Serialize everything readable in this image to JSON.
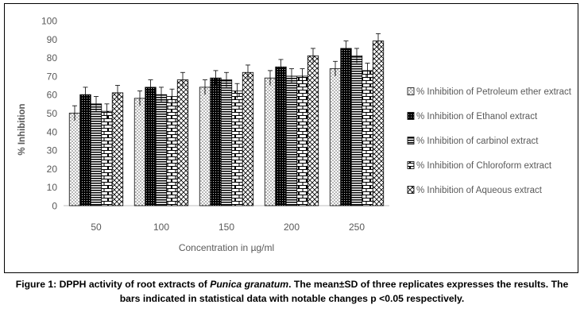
{
  "chart_data": {
    "type": "bar",
    "xlabel": "Concentration in µg/ml",
    "ylabel": "% Inhibition",
    "ylim": [
      0,
      100
    ],
    "yticks": [
      0,
      10,
      20,
      30,
      40,
      50,
      60,
      70,
      80,
      90,
      100
    ],
    "categories": [
      "50",
      "100",
      "150",
      "200",
      "250"
    ],
    "grid": false,
    "legend_position": "right",
    "series": [
      {
        "name": "% Inhibition of Petroleum ether extract",
        "pattern": "dots",
        "values": [
          50,
          58,
          64,
          69,
          74
        ],
        "errors": [
          4,
          4,
          4,
          4,
          4
        ]
      },
      {
        "name": "% Inhibition of Ethanol extract",
        "pattern": "dark-dots",
        "values": [
          60,
          64,
          69,
          75,
          85
        ],
        "errors": [
          4,
          4,
          4,
          4,
          4
        ]
      },
      {
        "name": "% Inhibition of carbinol extract",
        "pattern": "horizontal-lines",
        "values": [
          55,
          60,
          68,
          70,
          81
        ],
        "errors": [
          4,
          4,
          4,
          4,
          4
        ]
      },
      {
        "name": "% Inhibition of Chloroform extract",
        "pattern": "brick",
        "values": [
          51,
          59,
          62,
          70,
          73
        ],
        "errors": [
          4,
          4,
          4,
          4,
          4
        ]
      },
      {
        "name": "% Inhibition of Aqueous extract",
        "pattern": "diagonal-cross",
        "values": [
          61,
          68,
          72,
          81,
          89
        ],
        "errors": [
          4,
          4,
          4,
          4,
          4
        ]
      }
    ]
  },
  "caption": {
    "prefix": "Figure 1: DPPH activity of root extracts of ",
    "species": "Punica granatum",
    "suffix": ". The mean±SD of three replicates expresses the results.  The bars indicated in statistical data with notable changes p <0.05 respectively."
  }
}
